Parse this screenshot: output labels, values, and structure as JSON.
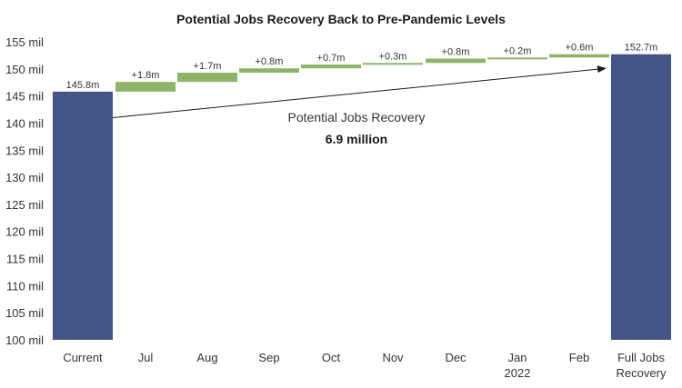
{
  "chart_data": {
    "type": "bar",
    "subtype": "waterfall",
    "title": "Potential Jobs Recovery Back to Pre-Pandemic Levels",
    "ylim": [
      100,
      155
    ],
    "yticks": [
      {
        "value": 100,
        "label": "100 mil"
      },
      {
        "value": 105,
        "label": "105 mil"
      },
      {
        "value": 110,
        "label": "110 mil"
      },
      {
        "value": 115,
        "label": "115 mil"
      },
      {
        "value": 120,
        "label": "120 mil"
      },
      {
        "value": 125,
        "label": "125 mil"
      },
      {
        "value": 130,
        "label": "130 mil"
      },
      {
        "value": 135,
        "label": "135 mil"
      },
      {
        "value": 140,
        "label": "140 mil"
      },
      {
        "value": 145,
        "label": "145 mil"
      },
      {
        "value": 150,
        "label": "150 mil"
      },
      {
        "value": 155,
        "label": "155 mil"
      }
    ],
    "grid": false,
    "legend": "none",
    "colors": {
      "total": "#435488",
      "increment": "#8db468",
      "text": "#333333"
    },
    "bars": [
      {
        "category": [
          "Current"
        ],
        "kind": "total",
        "value": 145.8,
        "label": "145.8m"
      },
      {
        "category": [
          "Jul"
        ],
        "kind": "increment",
        "start": 145.8,
        "end": 147.6,
        "label": "+1.8m"
      },
      {
        "category": [
          "Aug"
        ],
        "kind": "increment",
        "start": 147.6,
        "end": 149.3,
        "label": "+1.7m"
      },
      {
        "category": [
          "Sep"
        ],
        "kind": "increment",
        "start": 149.3,
        "end": 150.1,
        "label": "+0.8m"
      },
      {
        "category": [
          "Oct"
        ],
        "kind": "increment",
        "start": 150.1,
        "end": 150.8,
        "label": "+0.7m"
      },
      {
        "category": [
          "Nov"
        ],
        "kind": "increment",
        "start": 150.8,
        "end": 151.1,
        "label": "+0.3m"
      },
      {
        "category": [
          "Dec"
        ],
        "kind": "increment",
        "start": 151.1,
        "end": 151.9,
        "label": "+0.8m"
      },
      {
        "category": [
          "Jan",
          "2022"
        ],
        "kind": "increment",
        "start": 151.9,
        "end": 152.1,
        "label": "+0.2m"
      },
      {
        "category": [
          "Feb"
        ],
        "kind": "increment",
        "start": 152.1,
        "end": 152.7,
        "label": "+0.6m"
      },
      {
        "category": [
          "Full Jobs",
          "Recovery"
        ],
        "kind": "total",
        "value": 152.7,
        "label": "152.7m"
      }
    ],
    "annotation": {
      "line1": "Potential Jobs Recovery",
      "line2": "6.9 million",
      "arrow_from": {
        "category_index": 0,
        "value": 141.0
      },
      "arrow_to": {
        "category_index": 9,
        "value": 150.1
      }
    }
  }
}
